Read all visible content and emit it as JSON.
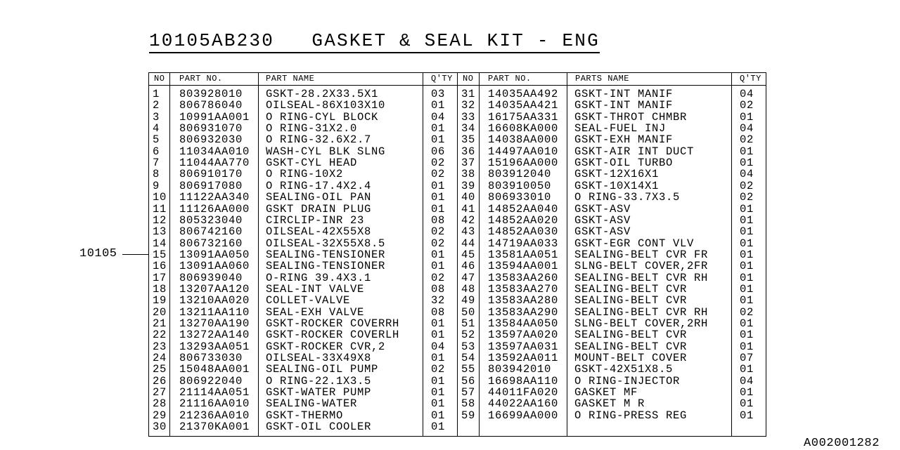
{
  "title": "10105AB230   GASKET & SEAL KIT - ENG",
  "callout": "10105",
  "footer_code": "A002001282",
  "headers_left": {
    "no": "NO",
    "part_no": "PART NO.",
    "name": "PART NAME",
    "qty": "Q'TY"
  },
  "headers_right": {
    "no": "NO",
    "part_no": "PART NO.",
    "name": "PARTS NAME",
    "qty": "Q'TY"
  },
  "parts": [
    {
      "no": "1",
      "part_no": "803928010",
      "name": "GSKT-28.2X33.5X1",
      "qty": "03"
    },
    {
      "no": "2",
      "part_no": "806786040",
      "name": "OILSEAL-86X103X10",
      "qty": "01"
    },
    {
      "no": "3",
      "part_no": "10991AA001",
      "name": "O RING-CYL BLOCK",
      "qty": "04"
    },
    {
      "no": "4",
      "part_no": "806931070",
      "name": "O RING-31X2.0",
      "qty": "01"
    },
    {
      "no": "5",
      "part_no": "806932030",
      "name": "O RING-32.6X2.7",
      "qty": "01"
    },
    {
      "no": "6",
      "part_no": "11034AA010",
      "name": "WASH-CYL BLK SLNG",
      "qty": "06"
    },
    {
      "no": "7",
      "part_no": "11044AA770",
      "name": "GSKT-CYL HEAD",
      "qty": "02"
    },
    {
      "no": "8",
      "part_no": "806910170",
      "name": "O RING-10X2",
      "qty": "02"
    },
    {
      "no": "9",
      "part_no": "806917080",
      "name": "O RING-17.4X2.4",
      "qty": "01"
    },
    {
      "no": "10",
      "part_no": "11122AA340",
      "name": "SEALING-OIL PAN",
      "qty": "01"
    },
    {
      "no": "11",
      "part_no": "11126AA000",
      "name": "GSKT DRAIN PLUG",
      "qty": "01"
    },
    {
      "no": "12",
      "part_no": "805323040",
      "name": "CIRCLIP-INR 23",
      "qty": "08"
    },
    {
      "no": "13",
      "part_no": "806742160",
      "name": "OILSEAL-42X55X8",
      "qty": "02"
    },
    {
      "no": "14",
      "part_no": "806732160",
      "name": "OILSEAL-32X55X8.5",
      "qty": "02"
    },
    {
      "no": "15",
      "part_no": "13091AA050",
      "name": "SEALING-TENSIONER",
      "qty": "01"
    },
    {
      "no": "16",
      "part_no": "13091AA060",
      "name": "SEALING-TENSIONER",
      "qty": "01"
    },
    {
      "no": "17",
      "part_no": "806939040",
      "name": "O-RING 39.4X3.1",
      "qty": "02"
    },
    {
      "no": "18",
      "part_no": "13207AA120",
      "name": "SEAL-INT VALVE",
      "qty": "08"
    },
    {
      "no": "19",
      "part_no": "13210AA020",
      "name": "COLLET-VALVE",
      "qty": "32"
    },
    {
      "no": "20",
      "part_no": "13211AA110",
      "name": "SEAL-EXH VALVE",
      "qty": "08"
    },
    {
      "no": "21",
      "part_no": "13270AA190",
      "name": "GSKT-ROCKER COVERRH",
      "qty": "01"
    },
    {
      "no": "22",
      "part_no": "13272AA140",
      "name": "GSKT-ROCKER COVERLH",
      "qty": "01"
    },
    {
      "no": "23",
      "part_no": "13293AA051",
      "name": "GSKT-ROCKER CVR,2",
      "qty": "04"
    },
    {
      "no": "24",
      "part_no": "806733030",
      "name": "OILSEAL-33X49X8",
      "qty": "01"
    },
    {
      "no": "25",
      "part_no": "15048AA001",
      "name": "SEALING-OIL PUMP",
      "qty": "02"
    },
    {
      "no": "26",
      "part_no": "806922040",
      "name": "O RING-22.1X3.5",
      "qty": "01"
    },
    {
      "no": "27",
      "part_no": "21114AA051",
      "name": "GSKT-WATER PUMP",
      "qty": "01"
    },
    {
      "no": "28",
      "part_no": "21116AA010",
      "name": "SEALING-WATER",
      "qty": "01"
    },
    {
      "no": "29",
      "part_no": "21236AA010",
      "name": "GSKT-THERMO",
      "qty": "01"
    },
    {
      "no": "30",
      "part_no": "21370KA001",
      "name": "GSKT-OIL COOLER",
      "qty": "01"
    },
    {
      "no": "31",
      "part_no": "14035AA492",
      "name": "GSKT-INT MANIF",
      "qty": "04"
    },
    {
      "no": "32",
      "part_no": "14035AA421",
      "name": "GSKT-INT MANIF",
      "qty": "02"
    },
    {
      "no": "33",
      "part_no": "16175AA331",
      "name": "GSKT-THROT CHMBR",
      "qty": "01"
    },
    {
      "no": "34",
      "part_no": "16608KA000",
      "name": "SEAL-FUEL INJ",
      "qty": "04"
    },
    {
      "no": "35",
      "part_no": "14038AA000",
      "name": "GSKT-EXH MANIF",
      "qty": "02"
    },
    {
      "no": "36",
      "part_no": "14497AA010",
      "name": "GSKT-AIR INT DUCT",
      "qty": "01"
    },
    {
      "no": "37",
      "part_no": "15196AA000",
      "name": "GSKT-OIL TURBO",
      "qty": "01"
    },
    {
      "no": "38",
      "part_no": "803912040",
      "name": "GSKT-12X16X1",
      "qty": "04"
    },
    {
      "no": "39",
      "part_no": "803910050",
      "name": "GSKT-10X14X1",
      "qty": "02"
    },
    {
      "no": "40",
      "part_no": "806933010",
      "name": "O RING-33.7X3.5",
      "qty": "02"
    },
    {
      "no": "41",
      "part_no": "14852AA040",
      "name": "GSKT-ASV",
      "qty": "01"
    },
    {
      "no": "42",
      "part_no": "14852AA020",
      "name": "GSKT-ASV",
      "qty": "01"
    },
    {
      "no": "43",
      "part_no": "14852AA030",
      "name": "GSKT-ASV",
      "qty": "01"
    },
    {
      "no": "44",
      "part_no": "14719AA033",
      "name": "GSKT-EGR CONT VLV",
      "qty": "01"
    },
    {
      "no": "45",
      "part_no": "13581AA051",
      "name": "SEALING-BELT CVR FR",
      "qty": "01"
    },
    {
      "no": "46",
      "part_no": "13594AA001",
      "name": "SLNG-BELT COVER,2FR",
      "qty": "01"
    },
    {
      "no": "47",
      "part_no": "13583AA260",
      "name": "SEALING-BELT CVR RH",
      "qty": "01"
    },
    {
      "no": "48",
      "part_no": "13583AA270",
      "name": "SEALING-BELT CVR",
      "qty": "01"
    },
    {
      "no": "49",
      "part_no": "13583AA280",
      "name": "SEALING-BELT CVR",
      "qty": "01"
    },
    {
      "no": "50",
      "part_no": "13583AA290",
      "name": "SEALING-BELT CVR RH",
      "qty": "02"
    },
    {
      "no": "51",
      "part_no": "13584AA050",
      "name": "SLNG-BELT COVER,2RH",
      "qty": "01"
    },
    {
      "no": "52",
      "part_no": "13597AA020",
      "name": "SEALING-BELT CVR",
      "qty": "01"
    },
    {
      "no": "53",
      "part_no": "13597AA031",
      "name": "SEALING-BELT CVR",
      "qty": "01"
    },
    {
      "no": "54",
      "part_no": "13592AA011",
      "name": "MOUNT-BELT COVER",
      "qty": "07"
    },
    {
      "no": "55",
      "part_no": "803942010",
      "name": "GSKT-42X51X8.5",
      "qty": "01"
    },
    {
      "no": "56",
      "part_no": "16698AA110",
      "name": "O RING-INJECTOR",
      "qty": "04"
    },
    {
      "no": "57",
      "part_no": "44011FA020",
      "name": "GASKET MF",
      "qty": "01"
    },
    {
      "no": "58",
      "part_no": "44022AA160",
      "name": "GASKET M R",
      "qty": "01"
    },
    {
      "no": "59",
      "part_no": "16699AA000",
      "name": "O RING-PRESS REG",
      "qty": "01"
    }
  ]
}
